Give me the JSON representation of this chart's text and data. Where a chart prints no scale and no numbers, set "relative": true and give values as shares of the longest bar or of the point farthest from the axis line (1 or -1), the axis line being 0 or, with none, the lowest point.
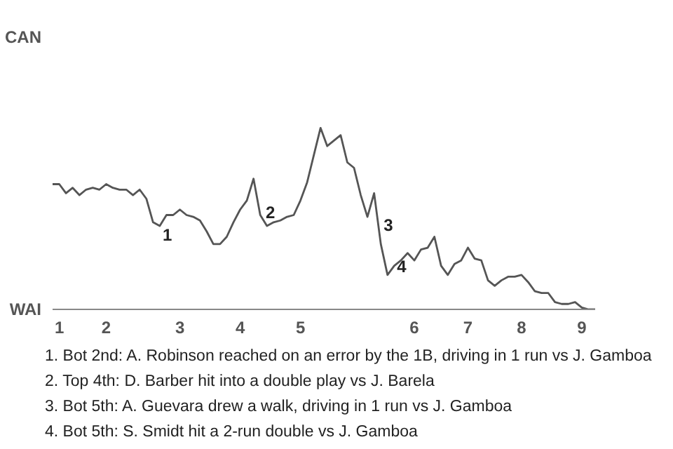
{
  "chart_data": {
    "type": "line",
    "relative": true,
    "marker": "none",
    "categories": [
      null,
      "1",
      null,
      null,
      null,
      null,
      null,
      null,
      "2",
      null,
      null,
      null,
      null,
      null,
      null,
      null,
      null,
      null,
      null,
      "3",
      null,
      null,
      null,
      null,
      null,
      null,
      null,
      null,
      "4",
      null,
      null,
      null,
      null,
      null,
      null,
      null,
      null,
      "5",
      null,
      null,
      null,
      null,
      null,
      null,
      null,
      null,
      null,
      null,
      null,
      null,
      null,
      null,
      null,
      null,
      "6",
      null,
      null,
      null,
      null,
      null,
      null,
      null,
      "7",
      null,
      null,
      null,
      null,
      null,
      null,
      null,
      "8",
      null,
      null,
      null,
      null,
      null,
      null,
      null,
      null,
      "9",
      null,
      null
    ],
    "series": [
      {
        "color": "#555555",
        "values": [
          0.69,
          0.69,
          0.64,
          0.67,
          0.63,
          0.66,
          0.67,
          0.66,
          0.69,
          0.67,
          0.66,
          0.66,
          0.63,
          0.66,
          0.61,
          0.48,
          0.46,
          0.52,
          0.52,
          0.55,
          0.52,
          0.51,
          0.49,
          0.43,
          0.36,
          0.36,
          0.4,
          0.48,
          0.55,
          0.6,
          0.72,
          0.52,
          0.46,
          0.48,
          0.49,
          0.51,
          0.52,
          0.6,
          0.7,
          0.85,
          1,
          0.9,
          0.93,
          0.96,
          0.81,
          0.78,
          0.63,
          0.51,
          0.64,
          0.36,
          0.19,
          0.24,
          0.27,
          0.31,
          0.27,
          0.33,
          0.34,
          0.4,
          0.24,
          0.19,
          0.25,
          0.27,
          0.34,
          0.28,
          0.27,
          0.16,
          0.13,
          0.16,
          0.18,
          0.18,
          0.19,
          0.15,
          0.1,
          0.09,
          0.09,
          0.04,
          0.03,
          0.03,
          0.04,
          0.01,
          0,
          0
        ]
      }
    ],
    "annotations": [
      "CAN",
      "WAI",
      "1",
      "2",
      "3",
      "4",
      "1. Bot 2nd: A. Robinson reached on an error by the 1B, driving in 1 run vs J. Gamboa",
      "2. Top 4th: D. Barber hit into a double play vs J. Barela",
      "3. Bot 5th: A. Guevara drew a walk, driving in 1 run vs J. Gamboa",
      "4. Bot 5th: S. Smidt hit a 2-run double vs J. Gamboa"
    ]
  }
}
